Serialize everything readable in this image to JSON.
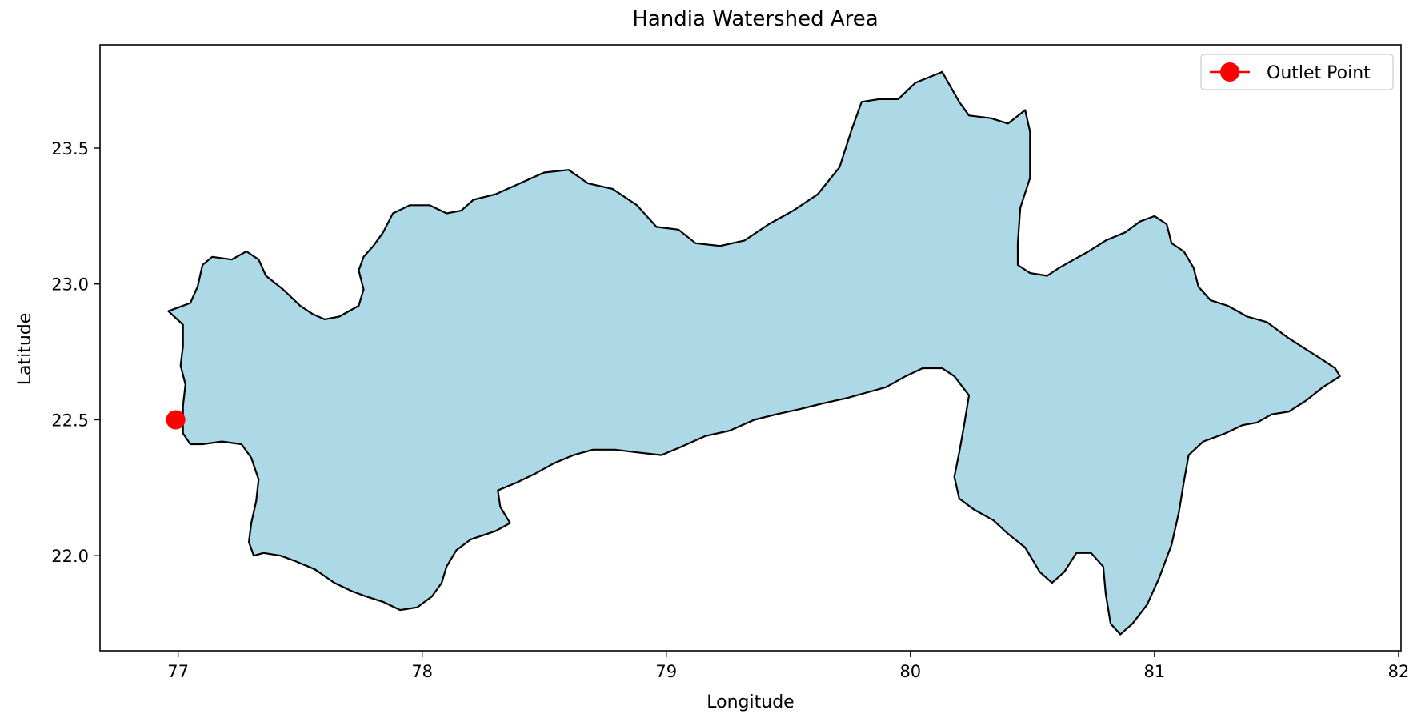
{
  "chart_data": {
    "type": "map",
    "title": "Handia Watershed Area",
    "xlabel": "Longitude",
    "ylabel": "Latitude",
    "xlim": [
      76.68,
      82.01
    ],
    "ylim": [
      21.65,
      23.88
    ],
    "xticks": [
      77,
      78,
      79,
      80,
      81,
      82
    ],
    "yticks": [
      22.0,
      22.5,
      23.0,
      23.5
    ],
    "xtick_labels": [
      "77",
      "78",
      "79",
      "80",
      "81",
      "82"
    ],
    "ytick_labels": [
      "22.0",
      "22.5",
      "23.0",
      "23.5"
    ],
    "grid": false,
    "legend": {
      "placement": "top-right",
      "entries": [
        "Outlet Point"
      ]
    },
    "colors": {
      "watershed_fill": "#add8e6",
      "watershed_edge": "#000000",
      "outlet": "#ff0000"
    },
    "outlet_point": {
      "name": "Outlet Point",
      "lon": 76.99,
      "lat": 22.5
    },
    "watershed_boundary": [
      [
        76.96,
        22.9
      ],
      [
        77.05,
        22.93
      ],
      [
        77.08,
        22.99
      ],
      [
        77.1,
        23.07
      ],
      [
        77.14,
        23.1
      ],
      [
        77.22,
        23.09
      ],
      [
        77.28,
        23.12
      ],
      [
        77.33,
        23.09
      ],
      [
        77.36,
        23.03
      ],
      [
        77.43,
        22.98
      ],
      [
        77.5,
        22.92
      ],
      [
        77.55,
        22.89
      ],
      [
        77.6,
        22.87
      ],
      [
        77.66,
        22.88
      ],
      [
        77.74,
        22.92
      ],
      [
        77.76,
        22.98
      ],
      [
        77.74,
        23.05
      ],
      [
        77.76,
        23.1
      ],
      [
        77.8,
        23.14
      ],
      [
        77.84,
        23.19
      ],
      [
        77.88,
        23.26
      ],
      [
        77.95,
        23.29
      ],
      [
        78.03,
        23.29
      ],
      [
        78.1,
        23.26
      ],
      [
        78.16,
        23.27
      ],
      [
        78.21,
        23.31
      ],
      [
        78.3,
        23.33
      ],
      [
        78.4,
        23.37
      ],
      [
        78.5,
        23.41
      ],
      [
        78.6,
        23.42
      ],
      [
        78.68,
        23.37
      ],
      [
        78.78,
        23.35
      ],
      [
        78.88,
        23.29
      ],
      [
        78.96,
        23.21
      ],
      [
        79.05,
        23.2
      ],
      [
        79.12,
        23.15
      ],
      [
        79.22,
        23.14
      ],
      [
        79.32,
        23.16
      ],
      [
        79.42,
        23.22
      ],
      [
        79.52,
        23.27
      ],
      [
        79.62,
        23.33
      ],
      [
        79.71,
        23.43
      ],
      [
        79.76,
        23.57
      ],
      [
        79.8,
        23.67
      ],
      [
        79.87,
        23.68
      ],
      [
        79.95,
        23.68
      ],
      [
        80.02,
        23.74
      ],
      [
        80.13,
        23.78
      ],
      [
        80.2,
        23.67
      ],
      [
        80.24,
        23.62
      ],
      [
        80.33,
        23.61
      ],
      [
        80.4,
        23.59
      ],
      [
        80.47,
        23.64
      ],
      [
        80.49,
        23.56
      ],
      [
        80.49,
        23.39
      ],
      [
        80.45,
        23.28
      ],
      [
        80.44,
        23.15
      ],
      [
        80.44,
        23.07
      ],
      [
        80.49,
        23.04
      ],
      [
        80.56,
        23.03
      ],
      [
        80.61,
        23.06
      ],
      [
        80.67,
        23.09
      ],
      [
        80.73,
        23.12
      ],
      [
        80.8,
        23.16
      ],
      [
        80.88,
        23.19
      ],
      [
        80.94,
        23.23
      ],
      [
        81.0,
        23.25
      ],
      [
        81.05,
        23.22
      ],
      [
        81.07,
        23.15
      ],
      [
        81.12,
        23.12
      ],
      [
        81.16,
        23.06
      ],
      [
        81.18,
        22.99
      ],
      [
        81.23,
        22.94
      ],
      [
        81.3,
        22.92
      ],
      [
        81.38,
        22.88
      ],
      [
        81.46,
        22.86
      ],
      [
        81.55,
        22.8
      ],
      [
        81.62,
        22.76
      ],
      [
        81.69,
        22.72
      ],
      [
        81.74,
        22.69
      ],
      [
        81.76,
        22.66
      ],
      [
        81.69,
        22.62
      ],
      [
        81.62,
        22.57
      ],
      [
        81.55,
        22.53
      ],
      [
        81.48,
        22.52
      ],
      [
        81.42,
        22.49
      ],
      [
        81.36,
        22.48
      ],
      [
        81.29,
        22.45
      ],
      [
        81.2,
        22.42
      ],
      [
        81.14,
        22.37
      ],
      [
        81.12,
        22.27
      ],
      [
        81.1,
        22.16
      ],
      [
        81.07,
        22.04
      ],
      [
        81.02,
        21.92
      ],
      [
        80.97,
        21.82
      ],
      [
        80.91,
        21.75
      ],
      [
        80.86,
        21.71
      ],
      [
        80.82,
        21.75
      ],
      [
        80.8,
        21.86
      ],
      [
        80.79,
        21.96
      ],
      [
        80.74,
        22.01
      ],
      [
        80.68,
        22.01
      ],
      [
        80.63,
        21.94
      ],
      [
        80.58,
        21.9
      ],
      [
        80.53,
        21.94
      ],
      [
        80.47,
        22.03
      ],
      [
        80.4,
        22.08
      ],
      [
        80.34,
        22.13
      ],
      [
        80.26,
        22.17
      ],
      [
        80.2,
        22.21
      ],
      [
        80.18,
        22.29
      ],
      [
        80.2,
        22.38
      ],
      [
        80.22,
        22.48
      ],
      [
        80.24,
        22.59
      ],
      [
        80.18,
        22.66
      ],
      [
        80.13,
        22.69
      ],
      [
        80.05,
        22.69
      ],
      [
        79.98,
        22.66
      ],
      [
        79.9,
        22.62
      ],
      [
        79.82,
        22.6
      ],
      [
        79.74,
        22.58
      ],
      [
        79.64,
        22.56
      ],
      [
        79.55,
        22.54
      ],
      [
        79.45,
        22.52
      ],
      [
        79.36,
        22.5
      ],
      [
        79.26,
        22.46
      ],
      [
        79.16,
        22.44
      ],
      [
        79.06,
        22.4
      ],
      [
        78.98,
        22.37
      ],
      [
        78.88,
        22.38
      ],
      [
        78.79,
        22.39
      ],
      [
        78.7,
        22.39
      ],
      [
        78.62,
        22.37
      ],
      [
        78.54,
        22.34
      ],
      [
        78.46,
        22.3
      ],
      [
        78.39,
        22.27
      ],
      [
        78.31,
        22.24
      ],
      [
        78.32,
        22.18
      ],
      [
        78.36,
        22.12
      ],
      [
        78.3,
        22.09
      ],
      [
        78.2,
        22.06
      ],
      [
        78.14,
        22.02
      ],
      [
        78.1,
        21.96
      ],
      [
        78.08,
        21.9
      ],
      [
        78.04,
        21.85
      ],
      [
        77.98,
        21.81
      ],
      [
        77.91,
        21.8
      ],
      [
        77.84,
        21.83
      ],
      [
        77.77,
        21.85
      ],
      [
        77.71,
        21.87
      ],
      [
        77.64,
        21.9
      ],
      [
        77.56,
        21.95
      ],
      [
        77.48,
        21.98
      ],
      [
        77.42,
        22.0
      ],
      [
        77.35,
        22.01
      ],
      [
        77.31,
        22.0
      ],
      [
        77.29,
        22.05
      ],
      [
        77.3,
        22.12
      ],
      [
        77.32,
        22.2
      ],
      [
        77.33,
        22.28
      ],
      [
        77.3,
        22.36
      ],
      [
        77.26,
        22.41
      ],
      [
        77.18,
        22.42
      ],
      [
        77.1,
        22.41
      ],
      [
        77.05,
        22.41
      ],
      [
        77.02,
        22.45
      ],
      [
        77.02,
        22.55
      ],
      [
        77.03,
        22.63
      ],
      [
        77.01,
        22.7
      ],
      [
        77.02,
        22.77
      ],
      [
        77.02,
        22.85
      ],
      [
        76.96,
        22.9
      ]
    ]
  }
}
